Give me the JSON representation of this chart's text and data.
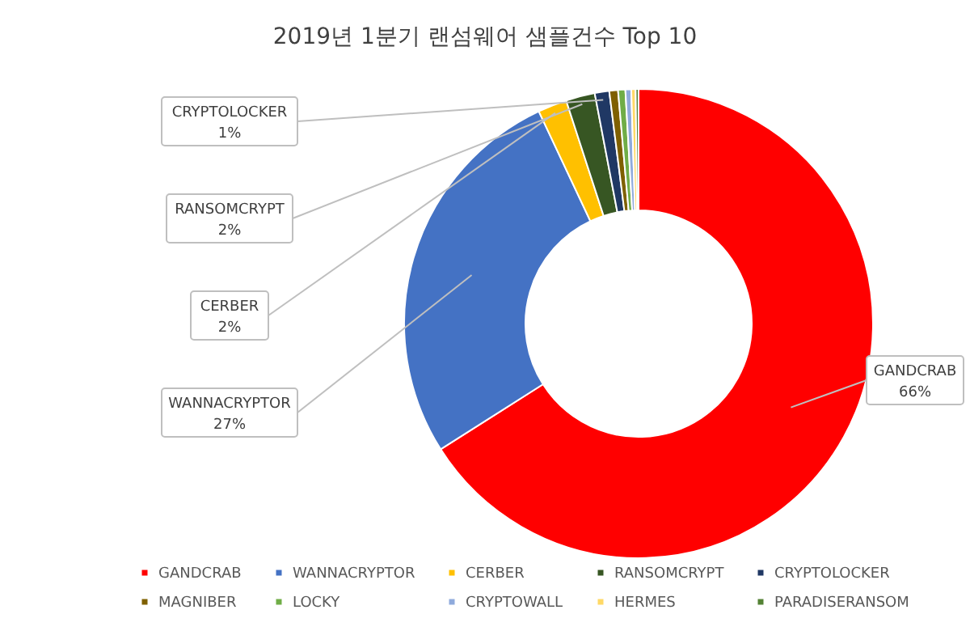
{
  "chart_data": {
    "type": "donut",
    "title": "2019년 1분기 랜섬웨어 샘플건수 Top 10",
    "categories": [
      "GANDCRAB",
      "WANNACRYPTOR",
      "CERBER",
      "RANSOMCRYPT",
      "CRYPTOLOCKER",
      "MAGNIBER",
      "LOCKY",
      "CRYPTOWALL",
      "HERMES",
      "PARADISERANSOM"
    ],
    "values": [
      66,
      27,
      2,
      2,
      1,
      0.6,
      0.5,
      0.4,
      0.3,
      0.2
    ],
    "colors": [
      "#ff0000",
      "#4472c4",
      "#ffc000",
      "#375623",
      "#203864",
      "#7f6000",
      "#70ad47",
      "#8faadc",
      "#ffd966",
      "#548235"
    ],
    "value_labels": [
      "66%",
      "27%",
      "2%",
      "2%",
      "1%",
      null,
      null,
      null,
      null,
      null
    ],
    "legend": "bottom"
  }
}
